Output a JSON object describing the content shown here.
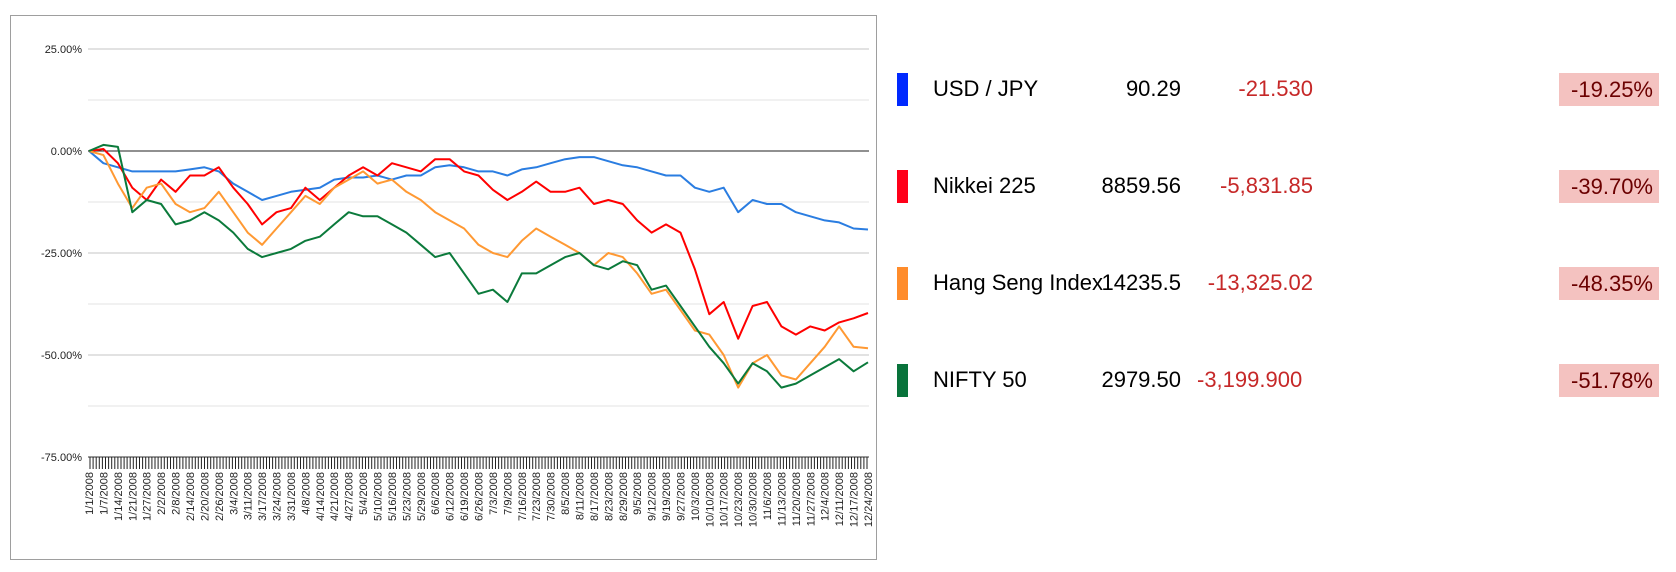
{
  "chart_data": {
    "type": "line",
    "title": "",
    "xlabel": "",
    "ylabel": "",
    "ylim": [
      -75,
      25
    ],
    "y_ticks": [
      "25.00%",
      "0.00%",
      "-25.00%",
      "-50.00%",
      "-75.00%"
    ],
    "y_tick_values": [
      25,
      0,
      -25,
      -50,
      -75
    ],
    "grid": true,
    "legend": "none",
    "x": [
      "1/1/2008",
      "1/7/2008",
      "1/14/2008",
      "1/21/2008",
      "1/27/2008",
      "2/2/2008",
      "2/8/2008",
      "2/14/2008",
      "2/20/2008",
      "2/26/2008",
      "3/4/2008",
      "3/11/2008",
      "3/17/2008",
      "3/24/2008",
      "3/31/2008",
      "4/8/2008",
      "4/14/2008",
      "4/21/2008",
      "4/27/2008",
      "5/4/2008",
      "5/10/2008",
      "5/16/2008",
      "5/23/2008",
      "5/29/2008",
      "6/6/2008",
      "6/12/2008",
      "6/19/2008",
      "6/26/2008",
      "7/3/2008",
      "7/9/2008",
      "7/16/2008",
      "7/23/2008",
      "7/30/2008",
      "8/5/2008",
      "8/11/2008",
      "8/17/2008",
      "8/23/2008",
      "8/29/2008",
      "9/5/2008",
      "9/12/2008",
      "9/19/2008",
      "9/27/2008",
      "10/3/2008",
      "10/10/2008",
      "10/17/2008",
      "10/23/2008",
      "10/30/2008",
      "11/6/2008",
      "11/13/2008",
      "11/20/2008",
      "11/27/2008",
      "12/4/2008",
      "12/11/2008",
      "12/17/2008",
      "12/24/2008"
    ],
    "series": [
      {
        "key": "usdjpy",
        "color": "#2a7de1",
        "values": [
          0,
          -3,
          -4,
          -5,
          -5,
          -5,
          -5,
          -4.5,
          -4,
          -5,
          -8,
          -10,
          -12,
          -11,
          -10,
          -9.5,
          -9,
          -7,
          -6.5,
          -6.5,
          -6,
          -7,
          -6,
          -6,
          -4,
          -3.5,
          -4,
          -5,
          -5,
          -6,
          -4.5,
          -4,
          -3,
          -2,
          -1.5,
          -1.5,
          -2.5,
          -3.5,
          -4,
          -5,
          -6,
          -6,
          -9,
          -10,
          -9,
          -15,
          -12,
          -13,
          -13,
          -15,
          -16,
          -17,
          -17.5,
          -19,
          -19.25
        ]
      },
      {
        "key": "nikkei",
        "color": "#ff0000",
        "values": [
          0,
          0.5,
          -3,
          -9,
          -12,
          -7,
          -10,
          -6,
          -6,
          -4,
          -9,
          -13,
          -18,
          -15,
          -14,
          -9,
          -12,
          -9,
          -6,
          -4,
          -6,
          -3,
          -4,
          -5,
          -2,
          -2,
          -5,
          -6,
          -9.5,
          -12,
          -10,
          -7.5,
          -10,
          -10,
          -9,
          -13,
          -12,
          -13,
          -17,
          -20,
          -18,
          -20,
          -29,
          -40,
          -37,
          -46,
          -38,
          -37,
          -43,
          -45,
          -43,
          -44,
          -42,
          -41,
          -39.7
        ]
      },
      {
        "key": "hangseng",
        "color": "#ff9933",
        "values": [
          0,
          -1,
          -8,
          -14,
          -9,
          -8,
          -13,
          -15,
          -14,
          -10,
          -15,
          -20,
          -23,
          -19,
          -15,
          -11,
          -13,
          -9,
          -7,
          -5,
          -8,
          -7,
          -10,
          -12,
          -15,
          -17,
          -19,
          -23,
          -25,
          -26,
          -22,
          -19,
          -21,
          -23,
          -25,
          -28,
          -25,
          -26,
          -30,
          -35,
          -34,
          -39,
          -44,
          -45,
          -50,
          -58,
          -52,
          -50,
          -55,
          -56,
          -52,
          -48,
          -43,
          -48,
          -48.35
        ]
      },
      {
        "key": "nifty",
        "color": "#0b7a3b",
        "values": [
          0,
          1.5,
          1,
          -15,
          -12,
          -13,
          -18,
          -17,
          -15,
          -17,
          -20,
          -24,
          -26,
          -25,
          -24,
          -22,
          -21,
          -18,
          -15,
          -16,
          -16,
          -18,
          -20,
          -23,
          -26,
          -25,
          -30,
          -35,
          -34,
          -37,
          -30,
          -30,
          -28,
          -26,
          -25,
          -28,
          -29,
          -27,
          -28,
          -34,
          -33,
          -38,
          -43,
          -48,
          -52,
          -57,
          -52,
          -54,
          -58,
          -57,
          -55,
          -53,
          -51,
          -54,
          -51.78
        ]
      }
    ]
  },
  "table": [
    {
      "name": "USD / JPY",
      "value": "90.29",
      "change": "-21.530",
      "pct": "-19.25%",
      "color": "#0029ff"
    },
    {
      "name": "Nikkei 225",
      "value": "8859.56",
      "change": "-5,831.85",
      "pct": "-39.70%",
      "color": "#ff0019"
    },
    {
      "name": "Hang Seng Index",
      "value": "14235.5",
      "change": "-13,325.02",
      "pct": "-48.35%",
      "color": "#ff8c2b"
    },
    {
      "name": "NIFTY 50",
      "value": "2979.50",
      "change": "-3,199.900",
      "pct": "-51.78%",
      "color": "#08733b"
    }
  ]
}
